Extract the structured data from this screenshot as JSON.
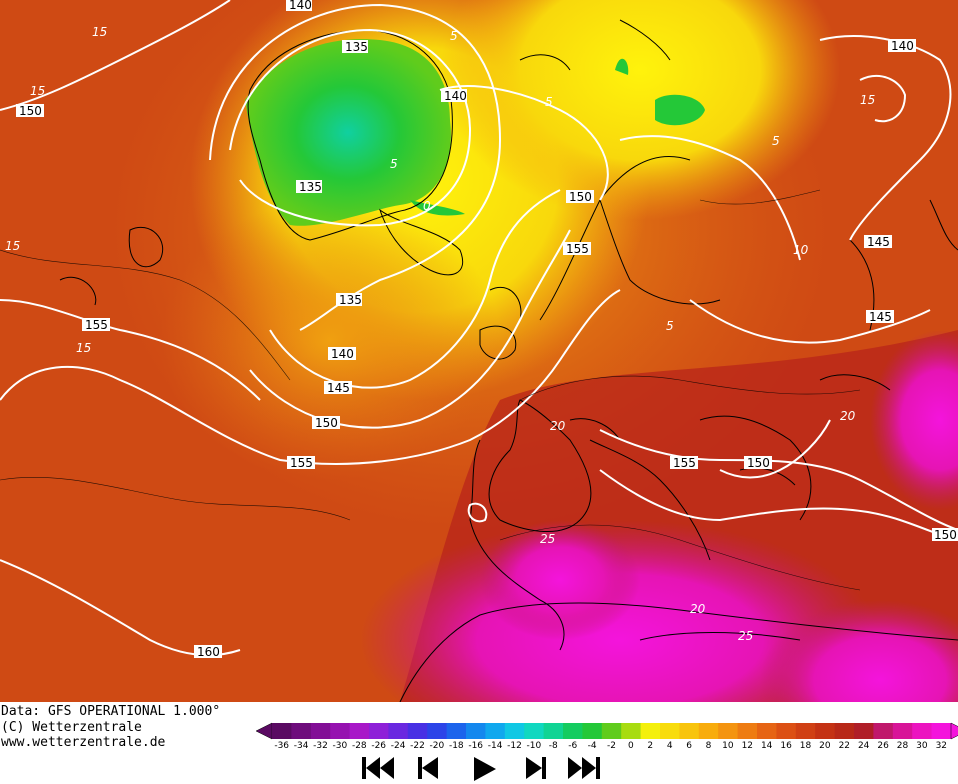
{
  "credits": {
    "line1": "Data: GFS OPERATIONAL 1.000°",
    "line2": "(C) Wetterzentrale",
    "line3": "www.wetterzentrale.de"
  },
  "legend": {
    "ticks": [
      "-36",
      "-34",
      "-32",
      "-30",
      "-28",
      "-26",
      "-24",
      "-22",
      "-20",
      "-18",
      "-16",
      "-14",
      "-12",
      "-10",
      "-8",
      "-6",
      "-4",
      "-2",
      "0",
      "2",
      "4",
      "6",
      "8",
      "10",
      "12",
      "14",
      "16",
      "18",
      "20",
      "22",
      "24",
      "26",
      "28",
      "30",
      "32"
    ],
    "colors": [
      "#5a0a62",
      "#6e0c7c",
      "#820e96",
      "#9612b0",
      "#a818c8",
      "#8e20d8",
      "#6a28e0",
      "#4830e4",
      "#2c44e8",
      "#1c64ec",
      "#1488ee",
      "#10a8ee",
      "#10c8e4",
      "#10d8c0",
      "#10d494",
      "#14cc60",
      "#24c838",
      "#60cc1c",
      "#a8dc10",
      "#f4f00c",
      "#f8dc0c",
      "#f8c40c",
      "#f8ac0c",
      "#f49410",
      "#ee7c12",
      "#e66414",
      "#dc5014",
      "#d04014",
      "#c43214",
      "#b82818",
      "#b01e28",
      "#c0186c",
      "#d81498",
      "#ec14c0",
      "#f414dc"
    ]
  },
  "map": {
    "isohypse_labels": [
      "140",
      "135",
      "140",
      "135",
      "150",
      "155",
      "150",
      "155",
      "135",
      "140",
      "145",
      "150",
      "155",
      "155",
      "150",
      "160",
      "140",
      "145",
      "145",
      "150"
    ],
    "temp_labels": [
      "15",
      "15",
      "15",
      "15",
      "5",
      "5",
      "0",
      "5",
      "5",
      "15",
      "10",
      "5",
      "20",
      "25",
      "20",
      "25",
      "20"
    ]
  },
  "nav": {
    "first": "first-frame",
    "prev": "previous-frame",
    "play": "play",
    "next": "next-frame",
    "last": "last-frame"
  }
}
